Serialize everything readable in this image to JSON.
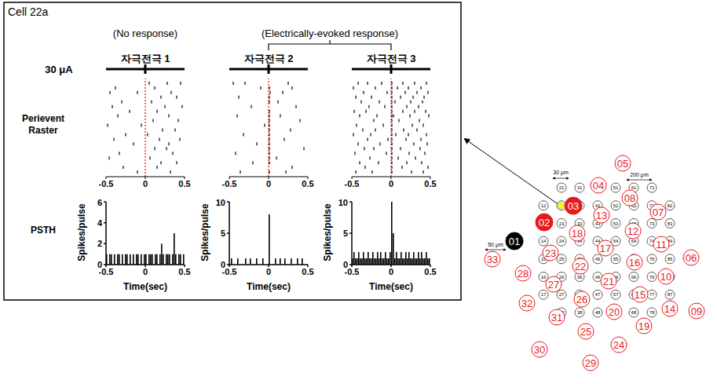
{
  "title": "Cell 22a",
  "stimulus": {
    "label": "30 μA",
    "time": 0,
    "color": "#ff0000"
  },
  "response_labels": [
    "(No response)",
    "(Electrically-evoked response)"
  ],
  "row_labels": [
    "Perievent Raster",
    "PSTH"
  ],
  "chart_data": [
    {
      "type": "scatter",
      "title": "자극전극 1",
      "trials": [
        [
          0.05,
          0.28,
          0.45
        ],
        [
          -0.38,
          0.12
        ],
        [
          -0.45,
          -0.1,
          0.33
        ],
        [
          0.2,
          0.4
        ],
        [
          -0.3,
          0.08
        ],
        [
          -0.42,
          0.25,
          0.47
        ],
        [
          -0.2,
          0.15
        ],
        [
          -0.35,
          0.3
        ],
        [
          0.1,
          0.42
        ],
        [
          -0.48,
          -0.05
        ],
        [
          0.22,
          0.38
        ],
        [
          -0.25,
          0.03
        ],
        [
          -0.4,
          0.18,
          0.44
        ],
        [
          -0.15,
          0.3
        ],
        [
          0.12,
          0.27
        ],
        [
          -0.33,
          0.35
        ],
        [
          -0.46,
          0.06
        ],
        [
          0.2,
          0.4
        ],
        [
          -0.28,
          0.15
        ],
        [
          -0.1,
          0.32
        ]
      ],
      "xlim": [
        -0.5,
        0.5
      ],
      "xticks": [
        -0.5,
        0,
        0.5
      ],
      "tick_labels": "x",
      "color": "#000000",
      "marker": "line"
    },
    {
      "type": "scatter",
      "title": "자극전극 2",
      "trials": [
        [
          -0.45,
          -0.3,
          0.25
        ],
        [
          -0.1,
          0.01,
          0.3
        ],
        [
          0.02,
          0.18
        ],
        [
          -0.38,
          0.01
        ],
        [
          0.01,
          0.12
        ],
        [
          -0.22,
          0.35
        ],
        [
          0.01
        ],
        [
          -0.4,
          0.01,
          0.15
        ],
        [
          0.01,
          0.4
        ],
        [
          -0.05,
          0.01
        ],
        [
          0.01,
          0.28
        ],
        [
          -0.32,
          0.01
        ],
        [
          0.01,
          0.2
        ],
        [
          -0.15,
          0.01
        ],
        [
          0.01,
          0.45
        ],
        [
          -0.42,
          0.01
        ],
        [
          0.01,
          0.1
        ],
        [
          -0.2,
          0.01
        ],
        [
          0.3
        ],
        [
          -0.36,
          0.01,
          0.22
        ]
      ],
      "xlim": [
        -0.5,
        0.5
      ],
      "xticks": [
        -0.5,
        0,
        0.5
      ],
      "tick_labels": "x",
      "color": "#000000",
      "marker": "line"
    },
    {
      "type": "scatter",
      "title": "자극전극 3",
      "trials": [
        [
          -0.42,
          -0.3,
          -0.12,
          0.01,
          0.15,
          0.3,
          0.45
        ],
        [
          -0.48,
          -0.2,
          0.01,
          0.08,
          0.22,
          0.38
        ],
        [
          -0.35,
          -0.05,
          0.01,
          0.18,
          0.33,
          0.47
        ],
        [
          -0.45,
          -0.25,
          0.01,
          0.12,
          0.28,
          0.42
        ],
        [
          -0.38,
          -0.15,
          0.01,
          0.05,
          0.25,
          0.4
        ],
        [
          -0.28,
          -0.08,
          0.01,
          0.2,
          0.35
        ],
        [
          -0.47,
          -0.32,
          0.01,
          0.15,
          0.3,
          0.44
        ],
        [
          -0.4,
          -0.18,
          0.01,
          0.03,
          0.24,
          0.48
        ],
        [
          -0.22,
          0.01,
          0.1,
          0.36
        ],
        [
          -0.44,
          -0.1,
          0.01,
          0.27,
          0.41
        ],
        [
          -0.36,
          -0.2,
          0.01,
          0.16,
          0.33
        ],
        [
          -0.48,
          -0.26,
          0.01,
          0.06,
          0.22,
          0.45
        ],
        [
          -0.3,
          -0.04,
          0.01,
          0.19,
          0.38
        ],
        [
          -0.42,
          -0.14,
          0.01,
          0.29,
          0.46
        ],
        [
          -0.34,
          -0.22,
          0.01,
          0.12,
          0.37
        ],
        [
          -0.46,
          -0.06,
          0.01,
          0.23,
          0.43
        ],
        [
          -0.27,
          0.01,
          0.09,
          0.31
        ],
        [
          -0.4,
          -0.16,
          0.01,
          0.2,
          0.39
        ],
        [
          -0.33,
          0.01,
          0.14,
          0.47
        ],
        [
          -0.45,
          -0.24,
          0.01,
          0.26,
          0.41
        ]
      ],
      "xlim": [
        -0.5,
        0.5
      ],
      "xticks": [
        -0.5,
        0,
        0.5
      ],
      "tick_labels": "x",
      "color": "#000000",
      "marker": "line"
    },
    {
      "type": "bar",
      "xlabel": "Time(sec)",
      "ylabel": "Spikes/pulse",
      "bins": [
        -0.5,
        -0.48,
        -0.46,
        -0.44,
        -0.42,
        -0.4,
        -0.38,
        -0.36,
        -0.34,
        -0.32,
        -0.3,
        -0.28,
        -0.26,
        -0.24,
        -0.22,
        -0.2,
        -0.18,
        -0.16,
        -0.14,
        -0.12,
        -0.1,
        -0.08,
        -0.06,
        -0.04,
        -0.02,
        0,
        0.02,
        0.04,
        0.06,
        0.08,
        0.1,
        0.12,
        0.14,
        0.16,
        0.18,
        0.2,
        0.22,
        0.24,
        0.26,
        0.28,
        0.3,
        0.32,
        0.34,
        0.36,
        0.38,
        0.4,
        0.42,
        0.44,
        0.46,
        0.48,
        0.5
      ],
      "values": [
        1,
        0,
        1,
        1,
        0,
        1,
        0,
        1,
        1,
        0,
        1,
        0,
        1,
        1,
        0,
        1,
        0,
        1,
        0,
        1,
        1,
        0,
        1,
        0,
        1,
        1,
        0,
        1,
        1,
        1,
        0,
        1,
        1,
        0,
        1,
        2,
        1,
        0,
        1,
        1,
        1,
        0,
        1,
        3,
        1,
        0,
        1,
        1,
        0,
        1
      ],
      "xlim": [
        -0.5,
        0.5
      ],
      "xticks": [
        -0.5,
        0,
        0.5
      ],
      "ylim": [
        0,
        6
      ],
      "yticks": [
        0,
        2,
        4,
        6
      ],
      "color": "#000000"
    },
    {
      "type": "bar",
      "xlabel": "Time(sec)",
      "ylabel": "Spikes/pulse",
      "bins": [
        -0.5,
        -0.48,
        -0.46,
        -0.44,
        -0.42,
        -0.4,
        -0.38,
        -0.36,
        -0.34,
        -0.32,
        -0.3,
        -0.28,
        -0.26,
        -0.24,
        -0.22,
        -0.2,
        -0.18,
        -0.16,
        -0.14,
        -0.12,
        -0.1,
        -0.08,
        -0.06,
        -0.04,
        -0.02,
        0,
        0.02,
        0.04,
        0.06,
        0.08,
        0.1,
        0.12,
        0.14,
        0.16,
        0.18,
        0.2,
        0.22,
        0.24,
        0.26,
        0.28,
        0.3,
        0.32,
        0.34,
        0.36,
        0.38,
        0.4,
        0.42,
        0.44,
        0.46,
        0.48,
        0.5
      ],
      "values": [
        0,
        1,
        0,
        0,
        0,
        1,
        0,
        0,
        0,
        0,
        1,
        0,
        0,
        1,
        0,
        0,
        0,
        1,
        0,
        0,
        0,
        1,
        0,
        0,
        0,
        8,
        0,
        0,
        0,
        1,
        0,
        0,
        1,
        0,
        0,
        1,
        0,
        0,
        0,
        1,
        0,
        0,
        0,
        1,
        0,
        0,
        1,
        0,
        0,
        0
      ],
      "xlim": [
        -0.5,
        0.5
      ],
      "xticks": [
        -0.5,
        0,
        0.5
      ],
      "ylim": [
        0,
        10
      ],
      "yticks": [
        0,
        5,
        10
      ],
      "color": "#000000"
    },
    {
      "type": "bar",
      "xlabel": "Time(sec)",
      "ylabel": "Spikes/pulse",
      "bins": [
        -0.5,
        -0.48,
        -0.46,
        -0.44,
        -0.42,
        -0.4,
        -0.38,
        -0.36,
        -0.34,
        -0.32,
        -0.3,
        -0.28,
        -0.26,
        -0.24,
        -0.22,
        -0.2,
        -0.18,
        -0.16,
        -0.14,
        -0.12,
        -0.1,
        -0.08,
        -0.06,
        -0.04,
        -0.02,
        0,
        0.02,
        0.04,
        0.06,
        0.08,
        0.1,
        0.12,
        0.14,
        0.16,
        0.18,
        0.2,
        0.22,
        0.24,
        0.26,
        0.28,
        0.3,
        0.32,
        0.34,
        0.36,
        0.38,
        0.4,
        0.42,
        0.44,
        0.46,
        0.48,
        0.5
      ],
      "values": [
        1,
        2,
        1,
        1,
        2,
        1,
        1,
        2,
        1,
        1,
        2,
        1,
        1,
        2,
        1,
        1,
        2,
        1,
        2,
        1,
        1,
        2,
        1,
        1,
        2,
        10,
        5,
        1,
        2,
        1,
        1,
        2,
        1,
        1,
        2,
        1,
        2,
        1,
        1,
        2,
        1,
        1,
        2,
        1,
        2,
        1,
        1,
        2,
        1,
        1
      ],
      "xlim": [
        -0.5,
        0.5
      ],
      "xticks": [
        -0.5,
        0,
        0.5
      ],
      "ylim": [
        0,
        10
      ],
      "yticks": [
        0,
        5,
        10
      ],
      "color": "#000000"
    }
  ],
  "diagram": {
    "electrodes": {
      "labels": [
        "01",
        "02",
        "03",
        "04",
        "05",
        "06",
        "07",
        "08",
        "09",
        "10",
        "11",
        "12",
        "13",
        "14",
        "15",
        "16",
        "17",
        "18",
        "19",
        "20",
        "21",
        "22",
        "23",
        "24",
        "25",
        "26",
        "27",
        "28",
        "29",
        "30",
        "31",
        "32",
        "33"
      ],
      "colors": [
        "#000000",
        "#e8191e",
        "#e8191e",
        "#ffffff",
        "#ffffff",
        "#ffffff",
        "#ffffff",
        "#ffffff",
        "#ffffff",
        "#ffffff",
        "#ffffff",
        "#ffffff",
        "#ffffff",
        "#ffffff",
        "#ffffff",
        "#ffffff",
        "#ffffff",
        "#ffffff",
        "#ffffff",
        "#ffffff",
        "#ffffff",
        "#ffffff",
        "#ffffff",
        "#ffffff",
        "#ffffff",
        "#ffffff",
        "#ffffff",
        "#ffffff",
        "#ffffff",
        "#ffffff",
        "#ffffff",
        "#ffffff",
        "#ffffff"
      ]
    },
    "grid_labels": [
      "21",
      "31",
      "41",
      "51",
      "61",
      "71",
      "12",
      "22",
      "32",
      "42",
      "52",
      "62",
      "72",
      "82",
      "13",
      "23",
      "33",
      "43",
      "53",
      "63",
      "73",
      "83",
      "14",
      "24",
      "34",
      "44",
      "54",
      "64",
      "74",
      "84",
      "15",
      "25",
      "35",
      "45",
      "55",
      "65",
      "75",
      "85",
      "16",
      "26",
      "36",
      "46",
      "56",
      "66",
      "76",
      "86",
      "17",
      "27",
      "37",
      "47",
      "57",
      "67",
      "77",
      "87",
      "28",
      "38",
      "48",
      "58",
      "68",
      "78"
    ],
    "scale_labels": [
      "30 μm",
      "200 μm",
      "50 μm"
    ]
  }
}
